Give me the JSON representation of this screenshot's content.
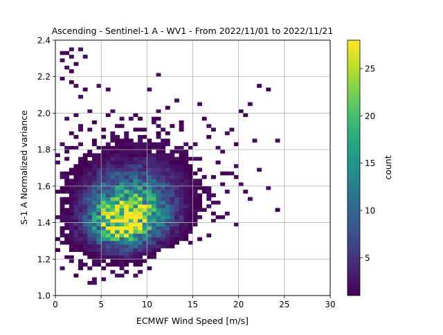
{
  "chart_data": {
    "type": "heatmap",
    "title": "Ascending - Sentinel-1 A - WV1 - From 2022/11/01 to 2022/11/21",
    "xlabel": "ECMWF Wind Speed [m/s]",
    "ylabel": "S-1 A Normalized variance",
    "xlim": [
      0,
      30
    ],
    "ylim": [
      1.0,
      2.4
    ],
    "xticks": [
      "0",
      "5",
      "10",
      "15",
      "20",
      "25",
      "30"
    ],
    "yticks": [
      "1.0",
      "1.2",
      "1.4",
      "1.6",
      "1.8",
      "2.0",
      "2.2",
      "2.4"
    ],
    "grid": true,
    "colorbar": {
      "label": "count",
      "colormap": "viridis",
      "range": [
        1,
        28
      ],
      "ticks": [
        "5",
        "10",
        "15",
        "20",
        "25"
      ]
    },
    "bin_size": {
      "x": 0.5,
      "y": 0.02
    },
    "density_model": {
      "peak_x": 7.5,
      "peak_y": 1.39,
      "peak_count": 28,
      "spread_x_low": 2.6,
      "spread_x_high": 3.2,
      "spread_y_low": 0.085,
      "spread_y_high": 0.17,
      "ridge": [
        [
          2.0,
          1.4
        ],
        [
          8.0,
          1.39
        ],
        [
          13.0,
          1.45
        ],
        [
          20.0,
          1.55
        ]
      ]
    },
    "sparse_points": [
      [
        0.75,
        2.33
      ],
      [
        1.25,
        2.33
      ],
      [
        1.75,
        2.35
      ],
      [
        2.75,
        2.35
      ],
      [
        0.75,
        2.29
      ],
      [
        1.75,
        2.31
      ],
      [
        1.25,
        2.25
      ],
      [
        1.75,
        2.23
      ],
      [
        2.25,
        2.27
      ],
      [
        3.25,
        2.31
      ],
      [
        0.75,
        2.19
      ],
      [
        1.75,
        2.17
      ],
      [
        2.25,
        2.15
      ],
      [
        3.25,
        2.13
      ],
      [
        4.75,
        2.15
      ],
      [
        5.75,
        2.13
      ],
      [
        11.25,
        2.21
      ],
      [
        10.25,
        2.13
      ],
      [
        22.25,
        2.15
      ],
      [
        23.25,
        2.13
      ],
      [
        2.75,
        2.09
      ],
      [
        13.25,
        2.07
      ],
      [
        15.75,
        2.05
      ],
      [
        12.25,
        2.03
      ],
      [
        20.25,
        2.01
      ],
      [
        20.75,
        1.99
      ],
      [
        21.25,
        2.05
      ],
      [
        3.75,
        2.01
      ],
      [
        6.25,
        2.01
      ],
      [
        5.75,
        1.99
      ],
      [
        16.25,
        1.97
      ],
      [
        16.75,
        1.93
      ],
      [
        17.25,
        1.91
      ],
      [
        18.75,
        1.89
      ],
      [
        19.25,
        1.91
      ],
      [
        21.75,
        1.85
      ],
      [
        24.25,
        1.85
      ],
      [
        17.75,
        1.81
      ],
      [
        19.75,
        1.83
      ],
      [
        18.25,
        1.79
      ],
      [
        17.75,
        1.73
      ],
      [
        19.75,
        1.71
      ],
      [
        22.25,
        1.69
      ],
      [
        18.25,
        1.67
      ],
      [
        19.75,
        1.65
      ],
      [
        20.25,
        1.61
      ],
      [
        23.25,
        1.59
      ],
      [
        21.25,
        1.53
      ],
      [
        24.25,
        1.47
      ],
      [
        18.75,
        1.45
      ],
      [
        20.75,
        1.57
      ],
      [
        19.75,
        1.39
      ],
      [
        18.25,
        1.43
      ],
      [
        15.75,
        1.31
      ],
      [
        14.75,
        1.29
      ],
      [
        16.75,
        1.33
      ],
      [
        3.25,
        1.17
      ],
      [
        2.25,
        1.11
      ],
      [
        4.25,
        1.09
      ],
      [
        3.75,
        1.07
      ],
      [
        5.25,
        1.09
      ],
      [
        6.25,
        1.13
      ],
      [
        8.25,
        1.19
      ],
      [
        9.75,
        1.23
      ],
      [
        11.25,
        1.27
      ],
      [
        12.25,
        1.31
      ],
      [
        13.25,
        1.37
      ],
      [
        13.75,
        1.47
      ],
      [
        14.75,
        1.61
      ],
      [
        15.25,
        1.67
      ],
      [
        15.75,
        1.75
      ],
      [
        14.25,
        1.83
      ],
      [
        13.75,
        1.95
      ],
      [
        12.75,
        1.93
      ],
      [
        11.75,
        1.91
      ],
      [
        10.75,
        1.97
      ],
      [
        9.75,
        1.91
      ],
      [
        8.75,
        1.99
      ],
      [
        7.25,
        1.97
      ],
      [
        6.75,
        1.93
      ],
      [
        4.25,
        1.95
      ],
      [
        2.25,
        1.99
      ],
      [
        1.25,
        1.97
      ],
      [
        1.75,
        1.89
      ],
      [
        2.75,
        1.93
      ],
      [
        0.75,
        1.83
      ],
      [
        0.25,
        1.77
      ],
      [
        0.25,
        1.57
      ],
      [
        0.75,
        1.65
      ],
      [
        0.25,
        1.43
      ],
      [
        0.75,
        1.37
      ],
      [
        0.25,
        1.25
      ],
      [
        1.25,
        1.29
      ],
      [
        1.75,
        1.21
      ],
      [
        2.25,
        1.25
      ]
    ]
  }
}
